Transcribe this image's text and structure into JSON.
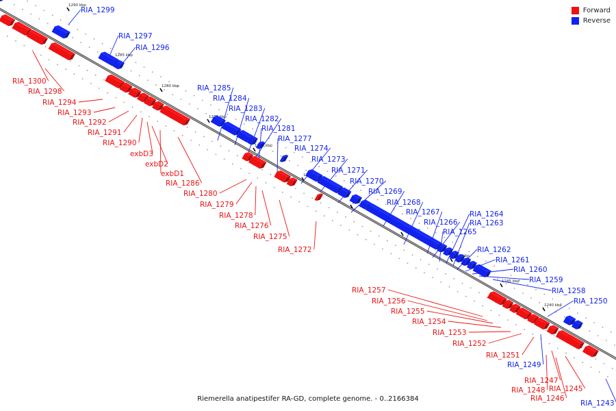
{
  "caption": "Riemerella anatipestifer RA-GD, complete genome. - 0..2166384",
  "legend": {
    "forward_label": "Forward",
    "reverse_label": "Reverse",
    "forward_color": "#ee1111",
    "reverse_color": "#1122ee"
  },
  "kbp_marks": [
    "1290 kbp",
    "1285 kbp",
    "1280 kbp",
    "1275 kbp",
    "1270 kbp",
    "1265 kbp",
    "1260 kbp",
    "1255 kbp",
    "1250 kbp",
    "1245 kbp",
    "1240 kbp"
  ],
  "reverse_genes": [
    "RIA_1299",
    "RIA_1297",
    "RIA_1296",
    "RIA_1285",
    "RIA_1284",
    "RIA_1283",
    "RIA_1282",
    "RIA_1281",
    "RIA_1277",
    "RIA_1274",
    "RIA_1273",
    "RIA_1271",
    "RIA_1270",
    "RIA_1269",
    "RIA_1268",
    "RIA_1267",
    "RIA_1266",
    "RIA_1265",
    "RIA_1264",
    "RIA_1263",
    "RIA_1262",
    "RIA_1261",
    "RIA_1260",
    "RIA_1259",
    "RIA_1258",
    "RIA_1250",
    "RIA_1249",
    "RIA_1243"
  ],
  "forward_genes": [
    "RIA_1300",
    "RIA_1298",
    "RIA_1294",
    "RIA_1293",
    "RIA_1292",
    "RIA_1291",
    "RIA_1290",
    "exbD3",
    "exbD2",
    "exbD1",
    "RIA_1286",
    "RIA_1280",
    "RIA_1279",
    "RIA_1278",
    "RIA_1276",
    "RIA_1275",
    "RIA_1272",
    "RIA_1257",
    "RIA_1256",
    "RIA_1255",
    "RIA_1254",
    "RIA_1253",
    "RIA_1252",
    "RIA_1251",
    "RIA_1248",
    "RIA_1247",
    "RIA_1246",
    "RIA_1245"
  ]
}
